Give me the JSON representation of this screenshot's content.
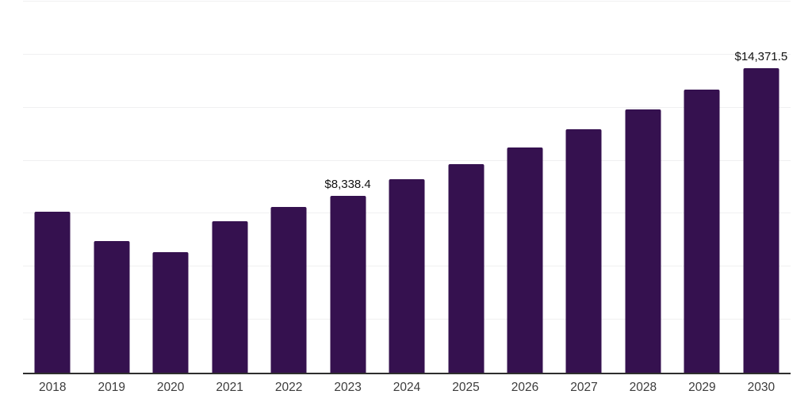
{
  "chart_data": {
    "type": "bar",
    "title": "",
    "xlabel": "",
    "ylabel": "",
    "categories": [
      "2018",
      "2019",
      "2020",
      "2021",
      "2022",
      "2023",
      "2024",
      "2025",
      "2026",
      "2027",
      "2028",
      "2029",
      "2030"
    ],
    "values": [
      7580,
      6200,
      5680,
      7130,
      7810,
      8338.4,
      9110,
      9830,
      10620,
      11490,
      12400,
      13350,
      14371.5
    ],
    "annotations": [
      {
        "category": "2023",
        "text": "$8,338.4"
      },
      {
        "category": "2030",
        "text": "$14,371.5"
      }
    ],
    "ylim": [
      0,
      17500
    ],
    "gridline_step": 2500,
    "grid": "horizontal-light",
    "legend_position": "none",
    "bar_color": "#35114F",
    "axis_line_color": "#2e2e2e",
    "gridline_color": "#f0f0f1",
    "tick_label_color": "#3c3c3c",
    "data_label_color": "#111111"
  }
}
